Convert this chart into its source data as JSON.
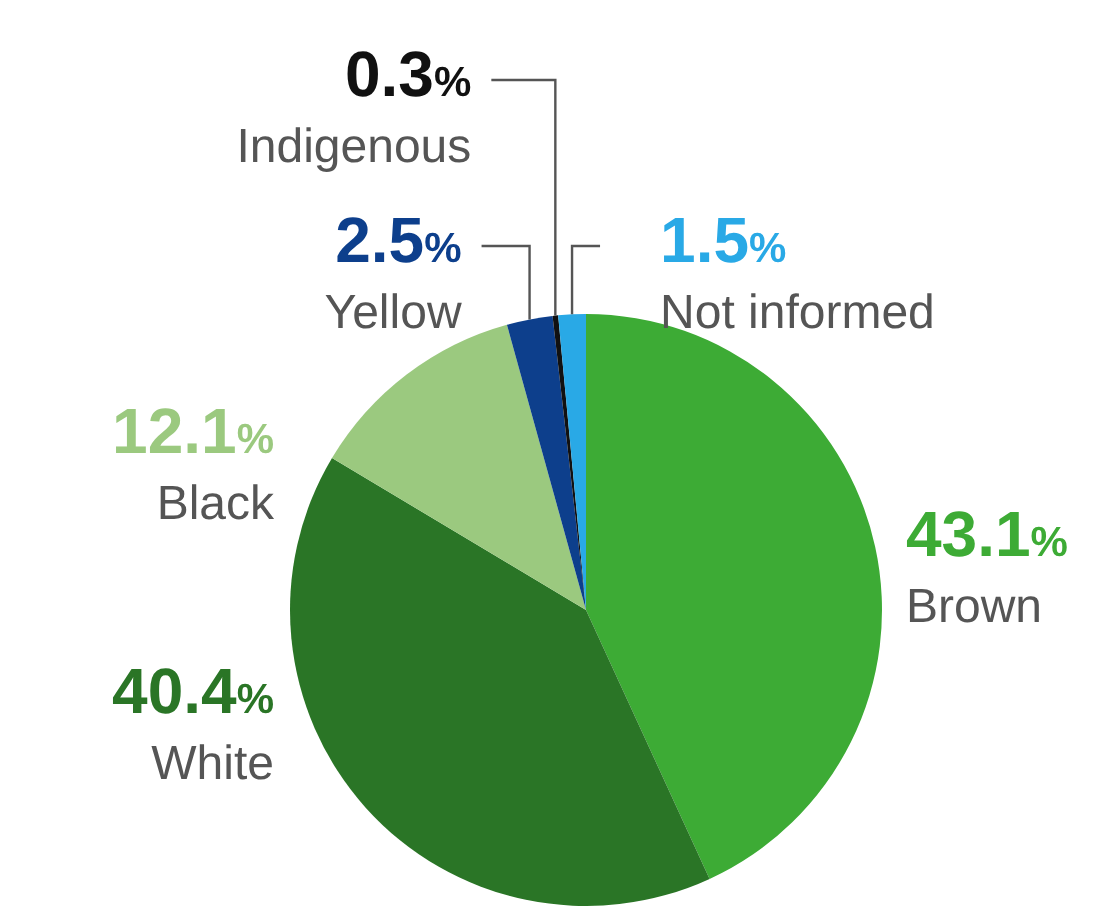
{
  "chart_data": {
    "type": "pie",
    "categories": [
      "Brown",
      "White",
      "Black",
      "Yellow",
      "Indigenous",
      "Not informed"
    ],
    "values": [
      43.1,
      40.4,
      12.1,
      2.5,
      0.3,
      1.5
    ],
    "colors": [
      "#3dab35",
      "#2a7526",
      "#9bc97f",
      "#0d3f8c",
      "#111111",
      "#29a9e6"
    ],
    "value_labels": [
      "43.1%",
      "40.4%",
      "12.1%",
      "2.5%",
      "0.3%",
      "1.5%"
    ],
    "legend": false
  }
}
